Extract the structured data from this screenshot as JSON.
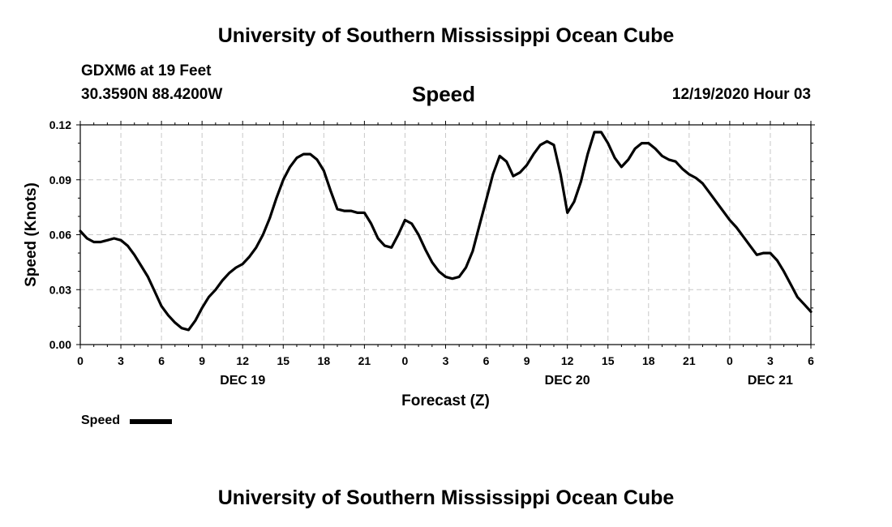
{
  "header": {
    "org_title": "University of Southern Mississippi Ocean Cube",
    "station": "GDXM6 at 19 Feet",
    "coords": "30.3590N 88.4200W",
    "time": "12/19/2020 Hour 03"
  },
  "footer": {
    "org_title": "University of Southern Mississippi Ocean Cube"
  },
  "legend": {
    "label": "Speed"
  },
  "chart_data": {
    "type": "line",
    "title": "Speed",
    "xlabel": "Forecast (Z)",
    "ylabel": "Speed (Knots)",
    "xlim": [
      0,
      54
    ],
    "ylim": [
      0,
      0.12
    ],
    "grid": true,
    "y_ticks": [
      "0.00",
      "0.03",
      "0.06",
      "0.09",
      "0.12"
    ],
    "x_ticks": [
      "0",
      "3",
      "6",
      "9",
      "12",
      "15",
      "18",
      "21",
      "0",
      "3",
      "6",
      "9",
      "12",
      "15",
      "18",
      "21",
      "0",
      "3",
      "6"
    ],
    "day_labels": [
      {
        "label": "DEC 19",
        "hour": 12
      },
      {
        "label": "DEC 20",
        "hour": 36
      },
      {
        "label": "DEC 21",
        "hour": 51
      }
    ],
    "series": [
      {
        "name": "Speed",
        "color": "#000000",
        "x": [
          0,
          0.5,
          1,
          1.5,
          2,
          2.5,
          3,
          3.5,
          4,
          4.5,
          5,
          5.5,
          6,
          6.5,
          7,
          7.5,
          8,
          8.5,
          9,
          9.5,
          10,
          10.5,
          11,
          11.5,
          12,
          12.5,
          13,
          13.5,
          14,
          14.5,
          15,
          15.5,
          16,
          16.5,
          17,
          17.5,
          18,
          18.5,
          19,
          19.5,
          20,
          20.5,
          21,
          21.5,
          22,
          22.5,
          23,
          23.5,
          24,
          24.5,
          25,
          25.5,
          26,
          26.5,
          27,
          27.5,
          28,
          28.5,
          29,
          29.5,
          30,
          30.5,
          31,
          31.5,
          32,
          32.5,
          33,
          33.5,
          34,
          34.5,
          35,
          35.5,
          36,
          36.5,
          37,
          37.5,
          38,
          38.5,
          39,
          39.5,
          40,
          40.5,
          41,
          41.5,
          42,
          42.5,
          43,
          43.5,
          44,
          44.5,
          45,
          45.5,
          46,
          46.5,
          47,
          47.5,
          48,
          48.5,
          49,
          49.5,
          50,
          50.5,
          51,
          51.5,
          52,
          52.5,
          53,
          53.5,
          54
        ],
        "values": [
          0.062,
          0.058,
          0.056,
          0.056,
          0.057,
          0.058,
          0.057,
          0.054,
          0.049,
          0.043,
          0.037,
          0.029,
          0.021,
          0.016,
          0.012,
          0.009,
          0.008,
          0.013,
          0.02,
          0.026,
          0.03,
          0.035,
          0.039,
          0.042,
          0.044,
          0.048,
          0.053,
          0.06,
          0.069,
          0.08,
          0.09,
          0.097,
          0.102,
          0.104,
          0.104,
          0.101,
          0.095,
          0.084,
          0.074,
          0.073,
          0.073,
          0.072,
          0.072,
          0.066,
          0.058,
          0.054,
          0.053,
          0.06,
          0.068,
          0.066,
          0.06,
          0.052,
          0.045,
          0.04,
          0.037,
          0.036,
          0.037,
          0.042,
          0.051,
          0.065,
          0.079,
          0.093,
          0.103,
          0.1,
          0.092,
          0.094,
          0.098,
          0.104,
          0.109,
          0.111,
          0.109,
          0.093,
          0.072,
          0.078,
          0.089,
          0.104,
          0.116,
          0.116,
          0.11,
          0.102,
          0.097,
          0.101,
          0.107,
          0.11,
          0.11,
          0.107,
          0.103,
          0.101,
          0.1,
          0.096,
          0.093,
          0.091,
          0.088,
          0.083,
          0.078,
          0.073,
          0.068,
          0.064,
          0.059,
          0.054,
          0.049,
          0.05,
          0.05,
          0.046,
          0.04,
          0.033,
          0.026,
          0.022,
          0.018
        ]
      }
    ]
  }
}
